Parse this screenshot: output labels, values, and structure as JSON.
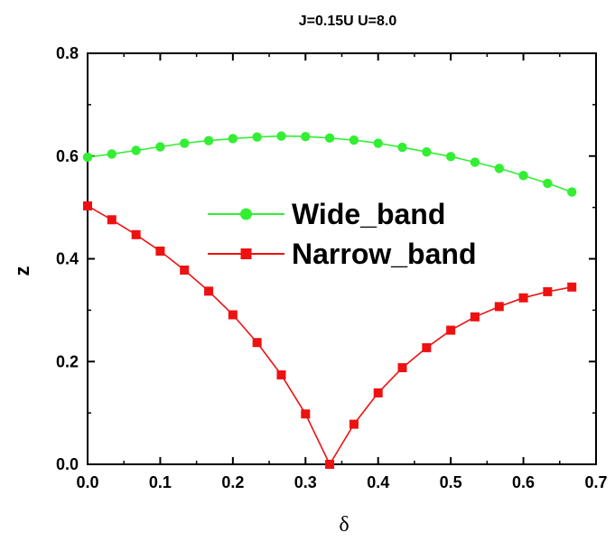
{
  "chart_data": {
    "type": "line",
    "title": "J=0.15U U=8.0",
    "xlabel": "δ",
    "ylabel": "z",
    "xlim": [
      0.0,
      0.7
    ],
    "ylim": [
      0.0,
      0.8
    ],
    "x_ticks": [
      "0.0",
      "0.1",
      "0.2",
      "0.3",
      "0.4",
      "0.5",
      "0.6",
      "0.7"
    ],
    "y_ticks": [
      "0.0",
      "0.2",
      "0.4",
      "0.6",
      "0.8"
    ],
    "legend_position": "center-right",
    "x": [
      0.0,
      0.0333,
      0.0667,
      0.1,
      0.1333,
      0.1667,
      0.2,
      0.2333,
      0.2667,
      0.3,
      0.3333,
      0.3667,
      0.4,
      0.4333,
      0.4667,
      0.5,
      0.5333,
      0.5667,
      0.6,
      0.6333,
      0.6667
    ],
    "series": [
      {
        "name": "Wide_band",
        "color": "#33ee33",
        "marker": "circle",
        "values": [
          0.598,
          0.604,
          0.611,
          0.618,
          0.625,
          0.63,
          0.634,
          0.637,
          0.639,
          0.638,
          0.635,
          0.631,
          0.625,
          0.617,
          0.608,
          0.599,
          0.588,
          0.576,
          0.562,
          0.547,
          0.53
        ]
      },
      {
        "name": "Narrow_band",
        "color": "#ee1111",
        "marker": "square",
        "values": [
          0.503,
          0.476,
          0.447,
          0.415,
          0.378,
          0.337,
          0.291,
          0.237,
          0.174,
          0.098,
          0.0,
          0.078,
          0.139,
          0.188,
          0.227,
          0.261,
          0.287,
          0.307,
          0.324,
          0.336,
          0.345
        ]
      }
    ]
  }
}
